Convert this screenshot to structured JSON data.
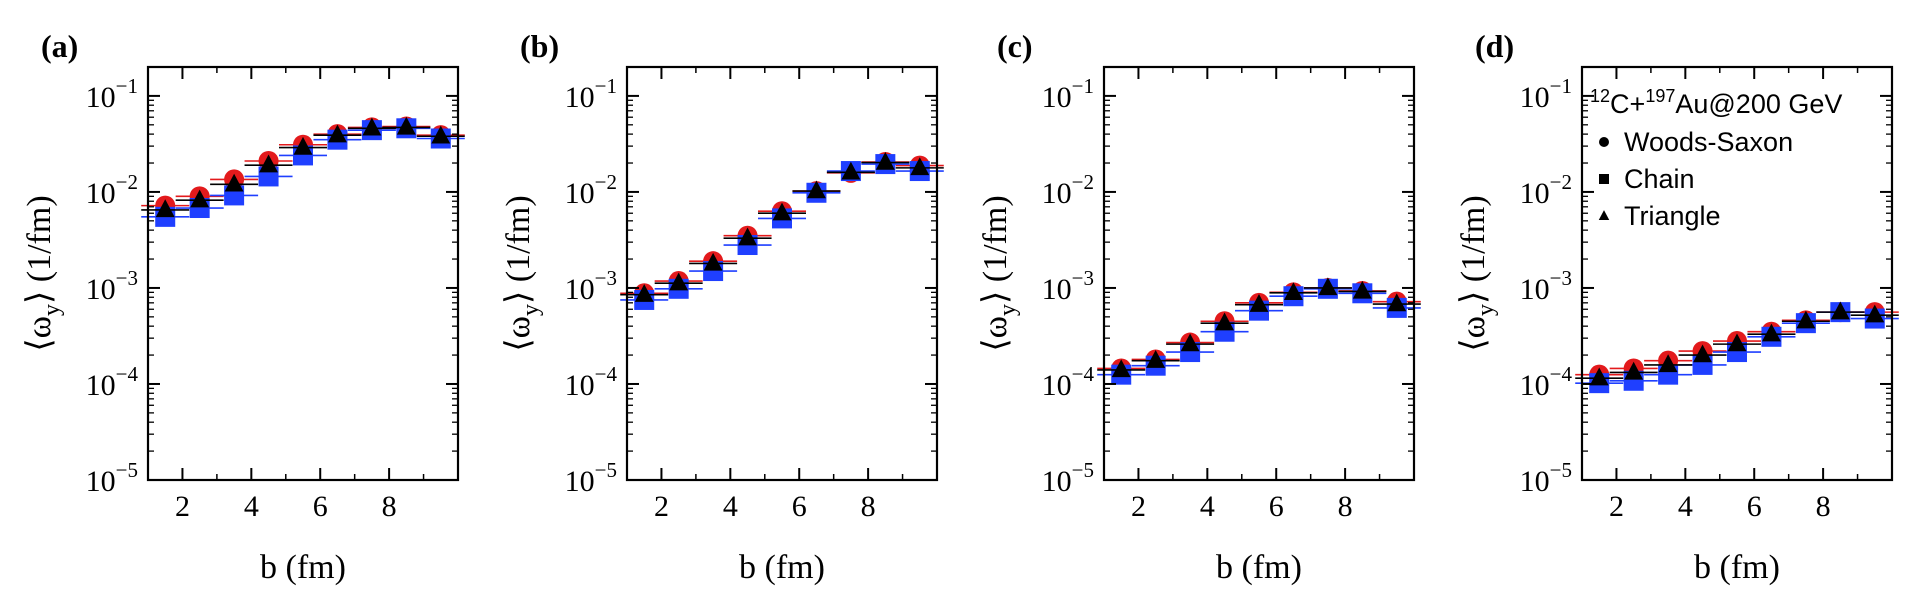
{
  "figure": {
    "title": "",
    "legend": {
      "system": {
        "nucleus1_mass": "12",
        "nucleus1": "C",
        "joiner": "+",
        "nucleus2_mass": "197",
        "nucleus2": "Au",
        "energy": "@200 GeV"
      },
      "entries": [
        {
          "label": "Woods-Saxon",
          "marker": "circle"
        },
        {
          "label": "Chain",
          "marker": "square"
        },
        {
          "label": "Triangle",
          "marker": "triangle"
        }
      ],
      "panel": "d",
      "placement": "top-left"
    },
    "colors": {
      "Woods-Saxon": "#e31a1c",
      "Chain": "#1f3fff",
      "Triangle": "#000000"
    }
  },
  "chart_data": [
    {
      "type": "scatter",
      "label": "(a)",
      "xlabel": "b (fm)",
      "ylabel": "⟨ω_y⟩ (1/fm)",
      "yscale": "log",
      "xlim": [
        1,
        10
      ],
      "ylim": [
        1e-05,
        0.2
      ],
      "xticks": [
        "2",
        "4",
        "6",
        "8"
      ],
      "yticks": [
        {
          "base": "10",
          "exp": "−1"
        },
        {
          "base": "10",
          "exp": "−2"
        },
        {
          "base": "10",
          "exp": "−3"
        },
        {
          "base": "10",
          "exp": "−4"
        },
        {
          "base": "10",
          "exp": "−5"
        }
      ],
      "x": [
        1.5,
        2.5,
        3.5,
        4.5,
        5.5,
        6.5,
        7.5,
        8.5,
        9.5
      ],
      "series": [
        {
          "name": "Woods-Saxon",
          "values": [
            0.0072,
            0.009,
            0.0135,
            0.021,
            0.031,
            0.04,
            0.047,
            0.048,
            0.039
          ]
        },
        {
          "name": "Chain",
          "values": [
            0.0055,
            0.0068,
            0.0092,
            0.0145,
            0.024,
            0.035,
            0.044,
            0.046,
            0.036
          ]
        },
        {
          "name": "Triangle",
          "values": [
            0.0065,
            0.0082,
            0.012,
            0.019,
            0.029,
            0.039,
            0.046,
            0.047,
            0.038
          ]
        }
      ]
    },
    {
      "type": "scatter",
      "label": "(b)",
      "xlabel": "b (fm)",
      "ylabel": "⟨ω_y⟩ (1/fm)",
      "yscale": "log",
      "xlim": [
        1,
        10
      ],
      "ylim": [
        1e-05,
        0.2
      ],
      "xticks": [
        "2",
        "4",
        "6",
        "8"
      ],
      "yticks": [
        {
          "base": "10",
          "exp": "−1"
        },
        {
          "base": "10",
          "exp": "−2"
        },
        {
          "base": "10",
          "exp": "−3"
        },
        {
          "base": "10",
          "exp": "−4"
        },
        {
          "base": "10",
          "exp": "−5"
        }
      ],
      "x": [
        1.5,
        2.5,
        3.5,
        4.5,
        5.5,
        6.5,
        7.5,
        8.5,
        9.5
      ],
      "series": [
        {
          "name": "Woods-Saxon",
          "values": [
            0.00088,
            0.00118,
            0.0019,
            0.0035,
            0.0063,
            0.0102,
            0.0158,
            0.0205,
            0.0188
          ]
        },
        {
          "name": "Chain",
          "values": [
            0.00075,
            0.00098,
            0.0015,
            0.0028,
            0.0053,
            0.0098,
            0.0165,
            0.0195,
            0.0165
          ]
        },
        {
          "name": "Triangle",
          "values": [
            0.00085,
            0.00112,
            0.0018,
            0.0033,
            0.006,
            0.0102,
            0.016,
            0.0202,
            0.0178
          ]
        }
      ]
    },
    {
      "type": "scatter",
      "label": "(c)",
      "xlabel": "b (fm)",
      "ylabel": "⟨ω_y⟩ (1/fm)",
      "yscale": "log",
      "xlim": [
        1,
        10
      ],
      "ylim": [
        1e-05,
        0.2
      ],
      "xticks": [
        "2",
        "4",
        "6",
        "8"
      ],
      "yticks": [
        {
          "base": "10",
          "exp": "−1"
        },
        {
          "base": "10",
          "exp": "−2"
        },
        {
          "base": "10",
          "exp": "−3"
        },
        {
          "base": "10",
          "exp": "−4"
        },
        {
          "base": "10",
          "exp": "−5"
        }
      ],
      "x": [
        1.5,
        2.5,
        3.5,
        4.5,
        5.5,
        6.5,
        7.5,
        8.5,
        9.5
      ],
      "series": [
        {
          "name": "Woods-Saxon",
          "values": [
            0.000145,
            0.00018,
            0.00027,
            0.00045,
            0.0007,
            0.0009,
            0.001,
            0.00093,
            0.00072
          ]
        },
        {
          "name": "Chain",
          "values": [
            0.000125,
            0.000155,
            0.000215,
            0.00035,
            0.00058,
            0.00082,
            0.00098,
            0.00088,
            0.00062
          ]
        },
        {
          "name": "Triangle",
          "values": [
            0.00014,
            0.000175,
            0.00026,
            0.00043,
            0.00067,
            0.00089,
            0.001,
            0.00092,
            0.00068
          ]
        }
      ]
    },
    {
      "type": "scatter",
      "label": "(d)",
      "xlabel": "b (fm)",
      "ylabel": "⟨ω_y⟩ (1/fm)",
      "yscale": "log",
      "xlim": [
        1,
        10
      ],
      "ylim": [
        1e-05,
        0.2
      ],
      "xticks": [
        "2",
        "4",
        "6",
        "8"
      ],
      "yticks": [
        {
          "base": "10",
          "exp": "−1"
        },
        {
          "base": "10",
          "exp": "−2"
        },
        {
          "base": "10",
          "exp": "−3"
        },
        {
          "base": "10",
          "exp": "−4"
        },
        {
          "base": "10",
          "exp": "−5"
        }
      ],
      "x": [
        1.5,
        2.5,
        3.5,
        4.5,
        5.5,
        6.5,
        7.5,
        8.5,
        9.5
      ],
      "series": [
        {
          "name": "Woods-Saxon",
          "values": [
            0.000125,
            0.000145,
            0.000175,
            0.00022,
            0.00028,
            0.00035,
            0.00046,
            0.00056,
            0.00056
          ]
        },
        {
          "name": "Chain",
          "values": [
            0.000102,
            0.000108,
            0.000125,
            0.000158,
            0.000215,
            0.00031,
            0.00043,
            0.00056,
            0.00048
          ]
        },
        {
          "name": "Triangle",
          "values": [
            0.000115,
            0.000132,
            0.000158,
            0.0002,
            0.00026,
            0.00033,
            0.00045,
            0.00056,
            0.00052
          ]
        }
      ]
    }
  ]
}
